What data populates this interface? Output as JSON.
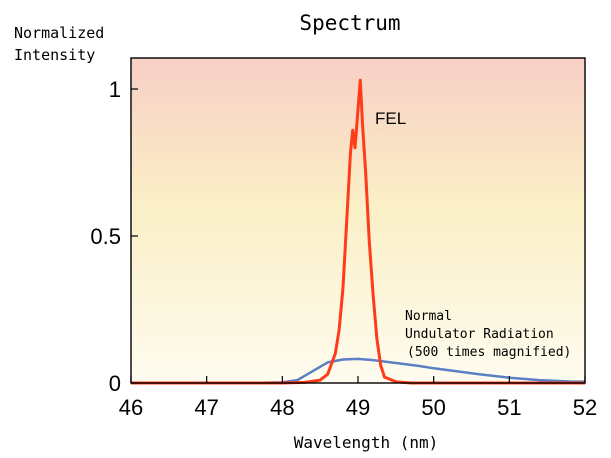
{
  "chart_data": {
    "type": "line",
    "title": "Spectrum",
    "ylabel": "Normalized\nIntensity",
    "xlabel": "Wavelength (nm)",
    "xlim": [
      46,
      52
    ],
    "ylim": [
      0,
      1.05
    ],
    "x_ticks": [
      "46",
      "47",
      "48",
      "49",
      "50",
      "51",
      "52"
    ],
    "y_ticks": [
      {
        "value": 0,
        "label": "0"
      },
      {
        "value": 0.5,
        "label": "0.5"
      },
      {
        "value": 1,
        "label": "1"
      }
    ],
    "background_gradient": [
      "#f8cfc6",
      "#faefc6",
      "#fefcef"
    ],
    "series": [
      {
        "name": "FEL",
        "color": "#ff3b1a",
        "points": [
          [
            46.0,
            0.0
          ],
          [
            47.0,
            0.0
          ],
          [
            48.0,
            0.0
          ],
          [
            48.3,
            0.002
          ],
          [
            48.5,
            0.01
          ],
          [
            48.6,
            0.03
          ],
          [
            48.7,
            0.1
          ],
          [
            48.75,
            0.18
          ],
          [
            48.8,
            0.32
          ],
          [
            48.85,
            0.55
          ],
          [
            48.9,
            0.78
          ],
          [
            48.93,
            0.86
          ],
          [
            48.96,
            0.8
          ],
          [
            49.0,
            0.93
          ],
          [
            49.03,
            1.03
          ],
          [
            49.06,
            0.88
          ],
          [
            49.1,
            0.72
          ],
          [
            49.15,
            0.48
          ],
          [
            49.2,
            0.3
          ],
          [
            49.25,
            0.15
          ],
          [
            49.3,
            0.06
          ],
          [
            49.35,
            0.02
          ],
          [
            49.4,
            0.015
          ],
          [
            49.5,
            0.004
          ],
          [
            49.7,
            0.0
          ],
          [
            50.0,
            0.0
          ],
          [
            51.0,
            0.0
          ],
          [
            52.0,
            0.0
          ]
        ]
      },
      {
        "name": "Normal Undulator Radiation (500 times magnified)",
        "color": "#5b7fc4",
        "points": [
          [
            46.0,
            0.0
          ],
          [
            47.5,
            0.0
          ],
          [
            48.0,
            0.002
          ],
          [
            48.2,
            0.01
          ],
          [
            48.4,
            0.04
          ],
          [
            48.6,
            0.07
          ],
          [
            48.8,
            0.08
          ],
          [
            49.0,
            0.082
          ],
          [
            49.2,
            0.078
          ],
          [
            49.5,
            0.068
          ],
          [
            49.8,
            0.058
          ],
          [
            50.0,
            0.05
          ],
          [
            50.3,
            0.04
          ],
          [
            50.6,
            0.03
          ],
          [
            51.0,
            0.018
          ],
          [
            51.4,
            0.01
          ],
          [
            51.8,
            0.005
          ],
          [
            52.0,
            0.004
          ]
        ]
      }
    ],
    "annotations": {
      "fel": "FEL",
      "undulator_line1": "Normal",
      "undulator_line2": "Undulator Radiation",
      "undulator_line3": "(500 times magnified)"
    }
  }
}
